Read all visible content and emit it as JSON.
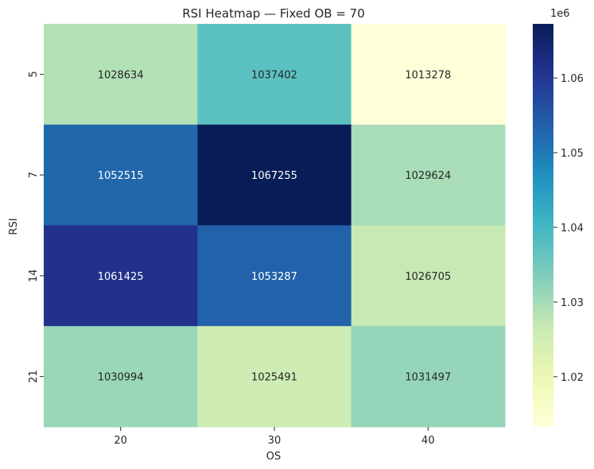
{
  "chart_data": {
    "type": "heatmap",
    "title": "RSI Heatmap — Fixed OB = 70",
    "xlabel": "OS",
    "ylabel": "RSI",
    "x_categories": [
      "20",
      "30",
      "40"
    ],
    "y_categories": [
      "5",
      "7",
      "14",
      "21"
    ],
    "values": [
      [
        1028634,
        1037402,
        1013278
      ],
      [
        1052515,
        1067255,
        1029624
      ],
      [
        1061425,
        1053287,
        1026705
      ],
      [
        1030994,
        1025491,
        1031497
      ]
    ],
    "annotation_labels": [
      [
        "1028634",
        "1037402",
        "1013278"
      ],
      [
        "1052515",
        "1067255",
        "1029624"
      ],
      [
        "1061425",
        "1053287",
        "1026705"
      ],
      [
        "1030994",
        "1025491",
        "1031497"
      ]
    ],
    "colormap": "YlGnBu",
    "colorbar": {
      "min": 1013278,
      "max": 1067255,
      "ticks": [
        1.02,
        1.03,
        1.04,
        1.05,
        1.06
      ],
      "tick_labels": [
        "1.02",
        "1.03",
        "1.04",
        "1.05",
        "1.06"
      ],
      "multiplier_label": "1e6"
    }
  }
}
